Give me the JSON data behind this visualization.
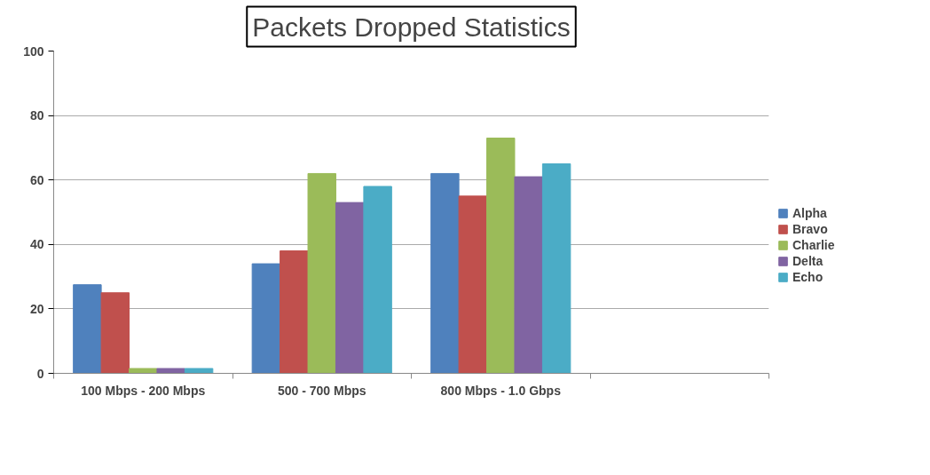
{
  "chart_data": {
    "type": "bar",
    "title": "Packets Dropped Statistics",
    "categories": [
      "100 Mbps - 200 Mbps",
      "500 - 700 Mbps",
      "800 Mbps - 1.0 Gbps",
      null
    ],
    "series": [
      {
        "name": "Alpha",
        "color": "#4f81bd",
        "values": [
          27.5,
          34,
          62,
          null
        ]
      },
      {
        "name": "Bravo",
        "color": "#c0504d",
        "values": [
          25,
          38,
          55,
          null
        ]
      },
      {
        "name": "Charlie",
        "color": "#9bbb59",
        "values": [
          1.5,
          62,
          73,
          null
        ]
      },
      {
        "name": "Delta",
        "color": "#8064a2",
        "values": [
          1.5,
          53,
          61,
          null
        ]
      },
      {
        "name": "Echo",
        "color": "#4bacc6",
        "values": [
          1.5,
          58,
          65,
          null
        ]
      }
    ],
    "ylim": [
      0,
      100
    ],
    "yticks": [
      0,
      20,
      40,
      60,
      80,
      100
    ],
    "grid": "y",
    "legend": "right"
  }
}
